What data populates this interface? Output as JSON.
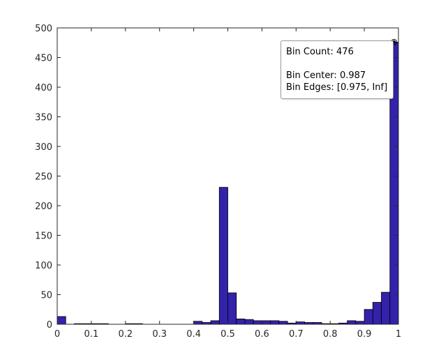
{
  "chart_data": {
    "type": "bar",
    "title": "",
    "xlabel": "",
    "ylabel": "",
    "xlim": [
      0,
      1
    ],
    "ylim": [
      0,
      500
    ],
    "xticks": [
      "0",
      "0.1",
      "0.2",
      "0.3",
      "0.4",
      "0.5",
      "0.6",
      "0.7",
      "0.8",
      "0.9",
      "1"
    ],
    "yticks": [
      "0",
      "50",
      "100",
      "150",
      "200",
      "250",
      "300",
      "350",
      "400",
      "450",
      "500"
    ],
    "bar_color": "#3322aa",
    "bin_width": 0.025,
    "bins": [
      {
        "start": 0.0,
        "end": 0.025,
        "count": 13
      },
      {
        "start": 0.025,
        "end": 0.05,
        "count": 0
      },
      {
        "start": 0.05,
        "end": 0.075,
        "count": 1
      },
      {
        "start": 0.075,
        "end": 0.1,
        "count": 1
      },
      {
        "start": 0.1,
        "end": 0.125,
        "count": 1
      },
      {
        "start": 0.125,
        "end": 0.15,
        "count": 1
      },
      {
        "start": 0.15,
        "end": 0.175,
        "count": 0
      },
      {
        "start": 0.175,
        "end": 0.2,
        "count": 0
      },
      {
        "start": 0.2,
        "end": 0.225,
        "count": 1
      },
      {
        "start": 0.225,
        "end": 0.25,
        "count": 1
      },
      {
        "start": 0.25,
        "end": 0.275,
        "count": 0
      },
      {
        "start": 0.275,
        "end": 0.3,
        "count": 0
      },
      {
        "start": 0.3,
        "end": 0.325,
        "count": 0
      },
      {
        "start": 0.325,
        "end": 0.35,
        "count": 0
      },
      {
        "start": 0.35,
        "end": 0.375,
        "count": 0
      },
      {
        "start": 0.375,
        "end": 0.4,
        "count": 0
      },
      {
        "start": 0.4,
        "end": 0.425,
        "count": 5
      },
      {
        "start": 0.425,
        "end": 0.45,
        "count": 3
      },
      {
        "start": 0.45,
        "end": 0.475,
        "count": 6
      },
      {
        "start": 0.475,
        "end": 0.5,
        "count": 231
      },
      {
        "start": 0.5,
        "end": 0.525,
        "count": 53
      },
      {
        "start": 0.525,
        "end": 0.55,
        "count": 9
      },
      {
        "start": 0.55,
        "end": 0.575,
        "count": 8
      },
      {
        "start": 0.575,
        "end": 0.6,
        "count": 6
      },
      {
        "start": 0.6,
        "end": 0.625,
        "count": 6
      },
      {
        "start": 0.625,
        "end": 0.65,
        "count": 6
      },
      {
        "start": 0.65,
        "end": 0.675,
        "count": 5
      },
      {
        "start": 0.675,
        "end": 0.7,
        "count": 2
      },
      {
        "start": 0.7,
        "end": 0.725,
        "count": 4
      },
      {
        "start": 0.725,
        "end": 0.75,
        "count": 3
      },
      {
        "start": 0.75,
        "end": 0.775,
        "count": 3
      },
      {
        "start": 0.775,
        "end": 0.8,
        "count": 1
      },
      {
        "start": 0.8,
        "end": 0.825,
        "count": 1
      },
      {
        "start": 0.825,
        "end": 0.85,
        "count": 2
      },
      {
        "start": 0.85,
        "end": 0.875,
        "count": 6
      },
      {
        "start": 0.875,
        "end": 0.9,
        "count": 5
      },
      {
        "start": 0.9,
        "end": 0.925,
        "count": 25
      },
      {
        "start": 0.925,
        "end": 0.95,
        "count": 37
      },
      {
        "start": 0.95,
        "end": 0.975,
        "count": 54
      },
      {
        "start": 0.975,
        "end": 1.0,
        "count": 476
      }
    ],
    "datatip": {
      "bin_count_text": "Bin Count: 476",
      "bin_center_text": "Bin Center: 0.987",
      "bin_edges_text": "Bin Edges: [0.975, Inf]",
      "bin_center": 0.987,
      "count": 476
    }
  }
}
